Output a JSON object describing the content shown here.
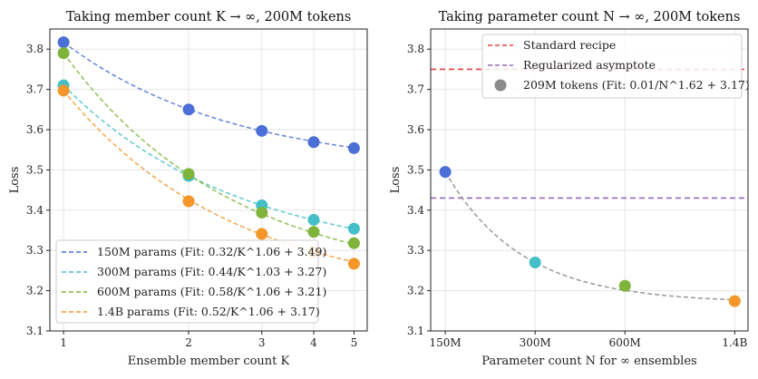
{
  "chart_data": [
    {
      "type": "line",
      "title": "Taking member count K → ∞, 200M tokens",
      "xlabel": "Ensemble member count K",
      "ylabel": "Loss",
      "xscale": "log",
      "x": [
        1,
        2,
        3,
        4,
        5
      ],
      "xticks": [
        "1",
        "2",
        "3",
        "4",
        "5"
      ],
      "ylim": [
        3.1,
        3.85
      ],
      "yticks": [
        "3.1",
        "3.2",
        "3.3",
        "3.4",
        "3.5",
        "3.6",
        "3.7",
        "3.8"
      ],
      "grid": true,
      "legend_placement": "lower-left",
      "series": [
        {
          "name": "150M params (Fit: 0.32/K^1.06 + 3.49)",
          "color": "#4b6fd6",
          "values": [
            3.817,
            3.65,
            3.597,
            3.569,
            3.554
          ]
        },
        {
          "name": "300M params (Fit: 0.44/K^1.03 + 3.27)",
          "color": "#44bfc8",
          "values": [
            3.71,
            3.485,
            3.412,
            3.376,
            3.354
          ]
        },
        {
          "name": "600M params (Fit: 0.58/K^1.06 + 3.21)",
          "color": "#7fb33a",
          "values": [
            3.79,
            3.49,
            3.394,
            3.346,
            3.318
          ]
        },
        {
          "name": "1.4B params (Fit: 0.52/K^1.06 + 3.17)",
          "color": "#f5962a",
          "values": [
            3.697,
            3.422,
            3.341,
            3.296,
            3.267
          ]
        }
      ]
    },
    {
      "type": "scatter",
      "title": "Taking parameter count N → ∞, 200M tokens",
      "xlabel": "Parameter count N for ∞ ensembles",
      "ylabel": "Loss",
      "xscale": "log",
      "x": [
        150,
        300,
        600,
        1400
      ],
      "xticks": [
        "150M",
        "300M",
        "600M",
        "1.4B"
      ],
      "ylim": [
        3.1,
        3.85
      ],
      "yticks": [
        "3.1",
        "3.2",
        "3.3",
        "3.4",
        "3.5",
        "3.6",
        "3.7",
        "3.8"
      ],
      "grid": true,
      "legend_placement": "top-right",
      "points": {
        "name": "209M tokens (Fit: 0.01/N^1.62 + 3.17)",
        "legend_color": "#8a8a8a",
        "values": [
          3.495,
          3.27,
          3.212,
          3.174
        ],
        "colors": [
          "#4b6fd6",
          "#44bfc8",
          "#7fb33a",
          "#f5962a"
        ]
      },
      "hlines": [
        {
          "name": "Standard recipe",
          "color": "#e8413c",
          "value": 3.75
        },
        {
          "name": "Regularized asymptote",
          "color": "#9467bd",
          "value": 3.43
        }
      ]
    }
  ]
}
